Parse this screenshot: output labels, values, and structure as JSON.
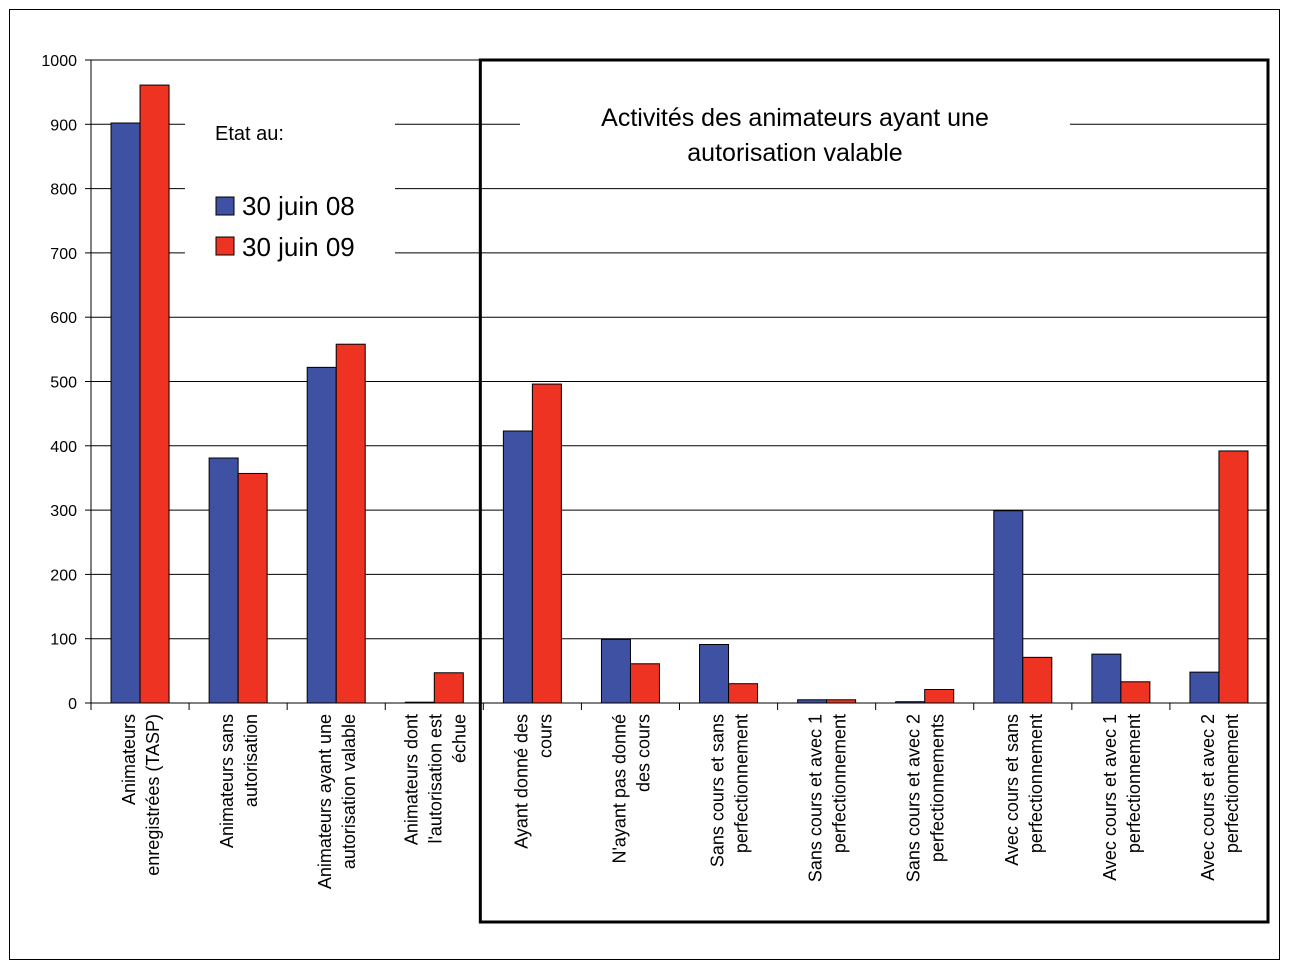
{
  "chart_data": {
    "type": "bar",
    "title": "",
    "xlabel": "",
    "ylabel": "",
    "ylim": [
      0,
      1000
    ],
    "yticks": [
      0,
      100,
      200,
      300,
      400,
      500,
      600,
      700,
      800,
      900,
      1000
    ],
    "grid": true,
    "categories": [
      "Animateurs enregistrées (TASP)",
      "Animateurs sans autorisation",
      "Animateurs ayant une autorisation valable",
      "Animateurs dont l'autorisation est échue",
      "Ayant donné des cours",
      "N'ayant pas donné des cours",
      "Sans cours et sans perfectionnement",
      "Sans cours et avec 1 perfectionnement",
      "Sans cours et avec 2 perfectionnements",
      "Avec cours et sans perfectionnement",
      "Avec cours et avec 1 perfectionnement",
      "Avec cours et avec 2 perfectionnement"
    ],
    "category_lines": [
      [
        "Animateurs",
        "enregistrées (TASP)"
      ],
      [
        "Animateurs sans",
        "autorisation"
      ],
      [
        "Animateurs ayant une",
        "autorisation valable"
      ],
      [
        "Animateurs dont",
        "l'autorisation est",
        "échue"
      ],
      [
        "Ayant donné des",
        "cours"
      ],
      [
        "N'ayant pas donné",
        "des cours"
      ],
      [
        "Sans cours et sans",
        "perfectionnement"
      ],
      [
        "Sans cours et avec 1",
        "perfectionnement"
      ],
      [
        "Sans cours et avec 2",
        "perfectionnements"
      ],
      [
        "Avec cours et sans",
        "perfectionnement"
      ],
      [
        "Avec cours et avec 1",
        "perfectionnement"
      ],
      [
        "Avec cours et avec 2",
        "perfectionnement"
      ]
    ],
    "series": [
      {
        "name": "30 juin 08",
        "color": "#3F51A3",
        "values": [
          902,
          381,
          522,
          0,
          423,
          99,
          91,
          5,
          2,
          299,
          76,
          48
        ]
      },
      {
        "name": "30 juin 09",
        "color": "#EE3322",
        "values": [
          961,
          357,
          558,
          47,
          496,
          61,
          30,
          5,
          21,
          71,
          33,
          392
        ]
      }
    ],
    "legend": {
      "title": "Etat au:",
      "position": "top-left"
    },
    "annotation": {
      "lines": [
        "Activités des animateurs ayant une",
        "autorisation valable"
      ],
      "box_from_category": 4
    }
  }
}
